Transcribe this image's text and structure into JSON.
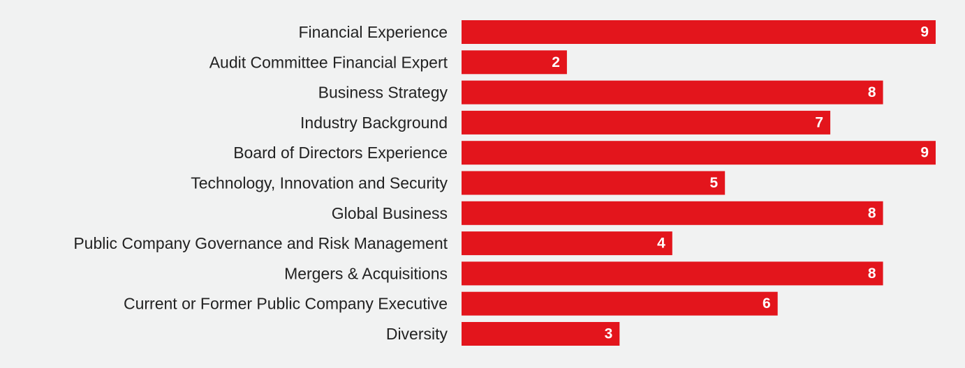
{
  "colors": {
    "background": "#f1f2f2",
    "bar": "#e3151c",
    "label": "#222222",
    "value_label": "#ffffff"
  },
  "chart_data": {
    "type": "bar",
    "orientation": "horizontal",
    "title": "",
    "xlabel": "",
    "ylabel": "",
    "xlim": [
      0,
      9
    ],
    "grid": false,
    "legend": "none",
    "categories": [
      "Financial Experience",
      "Audit Committee Financial Expert",
      "Business Strategy",
      "Industry Background",
      "Board of Directors Experience",
      "Technology, Innovation and Security",
      "Global Business",
      "Public Company Governance and Risk Management",
      "Mergers & Acquisitions",
      "Current or Former Public Company Executive",
      "Diversity"
    ],
    "values": [
      9,
      2,
      8,
      7,
      9,
      5,
      8,
      4,
      8,
      6,
      3
    ]
  }
}
